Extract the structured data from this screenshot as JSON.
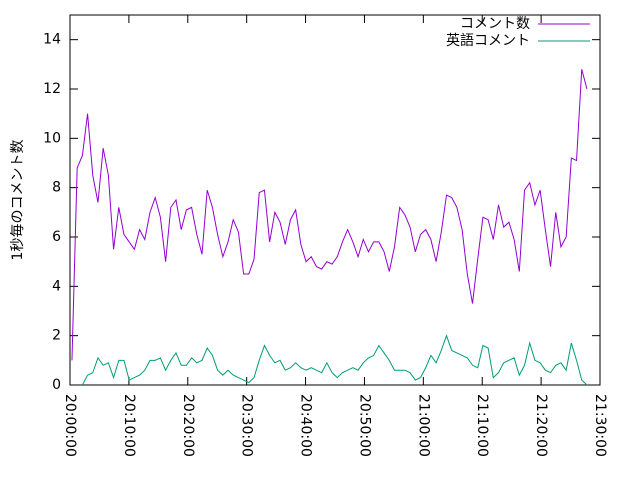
{
  "chart_data": {
    "type": "line",
    "ylabel": "1秒毎のコメント数",
    "xlim": [
      "20:00:00",
      "21:30:00"
    ],
    "xticks": [
      "20:00:00",
      "20:10:00",
      "20:20:00",
      "20:30:00",
      "20:40:00",
      "20:50:00",
      "21:00:00",
      "21:10:00",
      "21:20:00",
      "21:30:00"
    ],
    "ylim": [
      0,
      15
    ],
    "yticks": [
      0,
      2,
      4,
      6,
      8,
      10,
      12,
      14
    ],
    "legend": "top-right",
    "x": [
      "20:00:20",
      "20:01:13",
      "20:02:06",
      "20:02:59",
      "20:03:52",
      "20:04:45",
      "20:05:38",
      "20:06:31",
      "20:07:24",
      "20:08:17",
      "20:09:10",
      "20:10:03",
      "20:10:56",
      "20:11:49",
      "20:12:42",
      "20:13:35",
      "20:14:28",
      "20:15:21",
      "20:16:14",
      "20:17:07",
      "20:18:00",
      "20:18:53",
      "20:19:46",
      "20:20:39",
      "20:21:32",
      "20:22:25",
      "20:23:18",
      "20:24:11",
      "20:25:04",
      "20:25:57",
      "20:26:50",
      "20:27:43",
      "20:28:36",
      "20:29:29",
      "20:30:22",
      "20:31:15",
      "20:32:08",
      "20:33:01",
      "20:33:54",
      "20:34:47",
      "20:35:40",
      "20:36:33",
      "20:37:26",
      "20:38:19",
      "20:39:12",
      "20:40:05",
      "20:40:58",
      "20:41:51",
      "20:42:44",
      "20:43:37",
      "20:44:30",
      "20:45:23",
      "20:46:16",
      "20:47:09",
      "20:48:02",
      "20:48:55",
      "20:49:48",
      "20:50:41",
      "20:51:34",
      "20:52:27",
      "20:53:20",
      "20:54:13",
      "20:55:06",
      "20:55:59",
      "20:56:52",
      "20:57:45",
      "20:58:38",
      "20:59:31",
      "21:00:24",
      "21:01:17",
      "21:02:10",
      "21:03:03",
      "21:03:56",
      "21:04:49",
      "21:05:42",
      "21:06:35",
      "21:07:28",
      "21:08:21",
      "21:09:14",
      "21:10:07",
      "21:11:00",
      "21:11:53",
      "21:12:46",
      "21:13:39",
      "21:14:32",
      "21:15:25",
      "21:16:18",
      "21:17:11",
      "21:18:04",
      "21:18:57",
      "21:19:50",
      "21:20:43",
      "21:21:36",
      "21:22:29",
      "21:23:22",
      "21:24:15",
      "21:25:08",
      "21:26:01",
      "21:26:54",
      "21:27:47"
    ],
    "series": [
      {
        "name": "コメント数",
        "color": "#9400d3",
        "values": [
          1.0,
          8.8,
          9.3,
          11.0,
          8.5,
          7.4,
          9.6,
          8.5,
          5.5,
          7.2,
          6.1,
          5.8,
          5.5,
          6.3,
          5.9,
          7.0,
          7.6,
          6.8,
          5.0,
          7.2,
          7.5,
          6.3,
          7.1,
          7.2,
          6.1,
          5.3,
          7.9,
          7.2,
          6.1,
          5.2,
          5.8,
          6.7,
          6.2,
          4.5,
          4.5,
          5.1,
          7.8,
          7.9,
          5.8,
          7.0,
          6.6,
          5.7,
          6.7,
          7.1,
          5.7,
          5.0,
          5.2,
          4.8,
          4.7,
          5.0,
          4.9,
          5.2,
          5.8,
          6.3,
          5.8,
          5.2,
          5.9,
          5.4,
          5.8,
          5.8,
          5.4,
          4.6,
          5.6,
          7.2,
          6.9,
          6.4,
          5.4,
          6.1,
          6.3,
          5.9,
          5.0,
          6.2,
          7.7,
          7.6,
          7.2,
          6.3,
          4.5,
          3.3,
          5.1,
          6.8,
          6.7,
          5.9,
          7.3,
          6.4,
          6.6,
          5.9,
          4.6,
          7.9,
          8.2,
          7.3,
          7.9,
          6.3,
          4.8,
          7.0,
          5.6,
          6.0,
          9.2,
          9.1,
          12.8,
          12.0
        ]
      },
      {
        "name": "英語コメント",
        "color": "#009e73",
        "values": [
          null,
          null,
          0.0,
          0.4,
          0.5,
          1.1,
          0.8,
          0.9,
          0.3,
          1.0,
          1.0,
          0.2,
          0.3,
          0.4,
          0.6,
          1.0,
          1.0,
          1.1,
          0.6,
          1.0,
          1.3,
          0.8,
          0.8,
          1.1,
          0.9,
          1.0,
          1.5,
          1.2,
          0.6,
          0.4,
          0.6,
          0.4,
          0.3,
          0.2,
          0.1,
          0.3,
          1.0,
          1.6,
          1.2,
          0.9,
          1.0,
          0.6,
          0.7,
          0.9,
          0.7,
          0.6,
          0.7,
          0.6,
          0.5,
          0.9,
          0.5,
          0.3,
          0.5,
          0.6,
          0.7,
          0.6,
          0.9,
          1.1,
          1.2,
          1.6,
          1.3,
          1.0,
          0.6,
          0.6,
          0.6,
          0.5,
          0.2,
          0.3,
          0.7,
          1.2,
          0.9,
          1.4,
          2.0,
          1.4,
          1.3,
          1.2,
          1.1,
          0.8,
          0.7,
          1.6,
          1.5,
          0.3,
          0.5,
          0.9,
          1.0,
          1.1,
          0.4,
          0.8,
          1.7,
          1.0,
          0.9,
          0.6,
          0.5,
          0.8,
          0.9,
          0.6,
          1.7,
          1.0,
          0.2,
          0.0
        ]
      }
    ]
  }
}
